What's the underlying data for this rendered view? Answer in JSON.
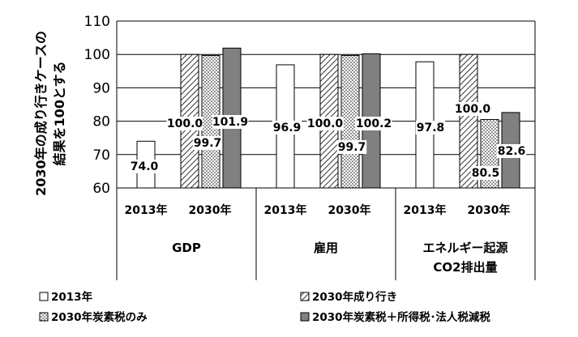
{
  "chart_data": {
    "type": "bar",
    "ylabel_line1": "2030年の成り行きケースの",
    "ylabel_line2": "結果を100とする",
    "ylim": [
      60,
      110
    ],
    "yticks": [
      60,
      70,
      80,
      90,
      100,
      110
    ],
    "grid": true,
    "legend_position": "bottom",
    "groups": [
      {
        "name": "GDP",
        "name_lines": [
          "GDP"
        ],
        "subcategories": [
          "2013年",
          "2030年"
        ],
        "bars": [
          {
            "series": "2013年",
            "value": 74.0,
            "label": "74.0"
          },
          {
            "series": "2030年成り行き",
            "value": 100.0,
            "label": "100.0"
          },
          {
            "series": "2030年炭素税のみ",
            "value": 99.7,
            "label": "99.7"
          },
          {
            "series": "2030年炭素税＋所得税･法人税減税",
            "value": 101.9,
            "label": "101.9"
          }
        ]
      },
      {
        "name": "雇用",
        "name_lines": [
          "雇用"
        ],
        "subcategories": [
          "2013年",
          "2030年"
        ],
        "bars": [
          {
            "series": "2013年",
            "value": 96.9,
            "label": "96.9"
          },
          {
            "series": "2030年成り行き",
            "value": 100.0,
            "label": "100.0"
          },
          {
            "series": "2030年炭素税のみ",
            "value": 99.7,
            "label": "99.7"
          },
          {
            "series": "2030年炭素税＋所得税･法人税減税",
            "value": 100.2,
            "label": "100.2"
          }
        ]
      },
      {
        "name": "エネルギー起源CO2排出量",
        "name_lines": [
          "エネルギー起源",
          "CO2排出量"
        ],
        "subcategories": [
          "2013年",
          "2030年"
        ],
        "bars": [
          {
            "series": "2013年",
            "value": 97.8,
            "label": "97.8"
          },
          {
            "series": "2030年成り行き",
            "value": 100.0,
            "label": "100.0"
          },
          {
            "series": "2030年炭素税のみ",
            "value": 80.5,
            "label": "80.5"
          },
          {
            "series": "2030年炭素税＋所得税･法人税減税",
            "value": 82.6,
            "label": "82.6"
          }
        ]
      }
    ],
    "series": [
      {
        "name": "2013年",
        "pattern": "white"
      },
      {
        "name": "2030年成り行き",
        "pattern": "diagonal-hatch"
      },
      {
        "name": "2030年炭素税のみ",
        "pattern": "dots"
      },
      {
        "name": "2030年炭素税＋所得税･法人税減税",
        "pattern": "solid-gray",
        "color": "#808080"
      }
    ]
  }
}
